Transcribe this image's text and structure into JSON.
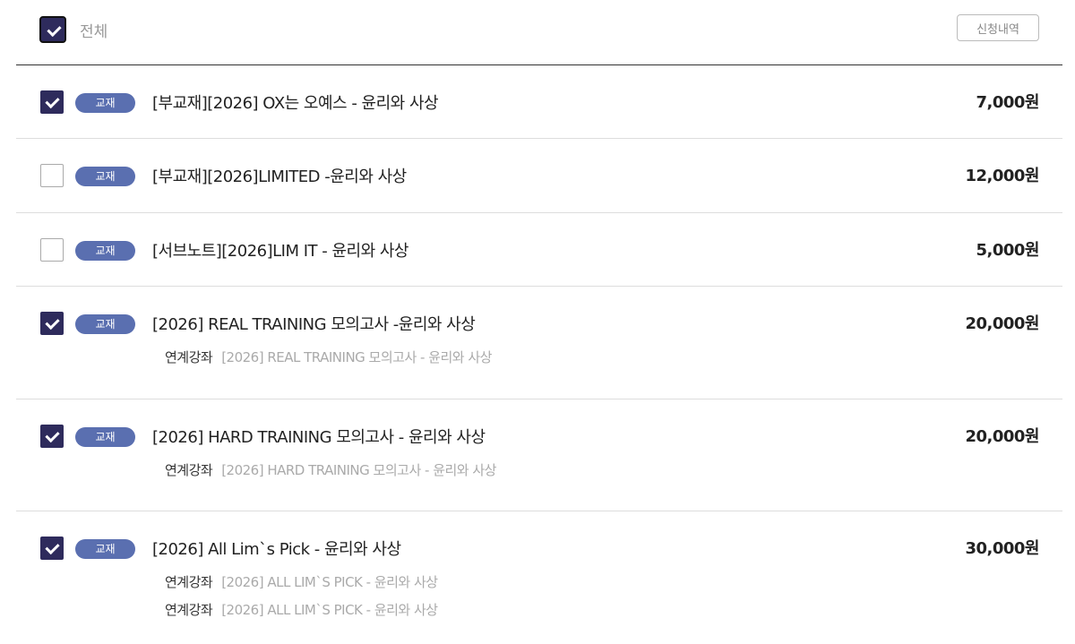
{
  "header": {
    "select_all_label": "전체",
    "select_all_checked": true,
    "history_button": "신청내역"
  },
  "colors": {
    "checkbox": "#2e2b5c",
    "badge": "#5a6fb0"
  },
  "items": [
    {
      "checked": true,
      "badge": "교재",
      "title": "[부교재][2026] OX는 오예스 - 윤리와 사상",
      "price": "7,000원",
      "linked": []
    },
    {
      "checked": false,
      "badge": "교재",
      "title": "[부교재][2026]LIMITED -윤리와 사상",
      "price": "12,000원",
      "linked": []
    },
    {
      "checked": false,
      "badge": "교재",
      "title": "[서브노트][2026]LIM IT - 윤리와 사상",
      "price": "5,000원",
      "linked": []
    },
    {
      "checked": true,
      "badge": "교재",
      "title": "[2026] REAL TRAINING 모의고사 -윤리와 사상",
      "price": "20,000원",
      "linked": [
        {
          "label": "연계강좌",
          "value": "[2026] REAL TRAINING 모의고사 - 윤리와 사상"
        }
      ]
    },
    {
      "checked": true,
      "badge": "교재",
      "title": "[2026] HARD TRAINING 모의고사 - 윤리와 사상",
      "price": "20,000원",
      "linked": [
        {
          "label": "연계강좌",
          "value": "[2026] HARD TRAINING 모의고사 - 윤리와 사상"
        }
      ]
    },
    {
      "checked": true,
      "badge": "교재",
      "title": "[2026] All Lim`s Pick - 윤리와 사상",
      "price": "30,000원",
      "linked": [
        {
          "label": "연계강좌",
          "value": "[2026] ALL LIM`S PICK - 윤리와 사상"
        },
        {
          "label": "연계강좌",
          "value": "[2026] ALL LIM`S PICK - 윤리와 사상"
        }
      ]
    }
  ]
}
